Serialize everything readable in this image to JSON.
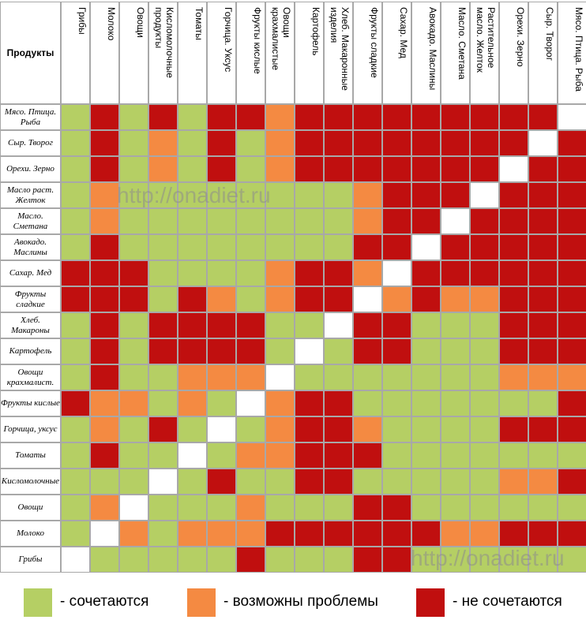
{
  "table": {
    "corner": "Продукты",
    "columns": [
      "Грибы",
      "Молоко",
      "Овощи",
      "Кисломолочные продукты",
      "Томаты",
      "Горчица. Уксус",
      "Фрукты кислые",
      "Овощи крахмалистые",
      "Картофель",
      "Хлеб. Макаронные изделия",
      "Фрукты сладкие",
      "Сахар. Мед",
      "Авокадо. Маслины",
      "Масло. Сметана",
      "Растительное масло. Желток",
      "Орехи. Зерно",
      "Сыр. Творог",
      "Мясо. Птица. Рыба"
    ],
    "rows": [
      {
        "label": "Мясо. Птица. Рыба",
        "cells": [
          "g",
          "r",
          "g",
          "r",
          "g",
          "r",
          "r",
          "o",
          "r",
          "r",
          "r",
          "r",
          "r",
          "r",
          "r",
          "r",
          "r",
          "w"
        ]
      },
      {
        "label": "Сыр. Творог",
        "cells": [
          "g",
          "r",
          "g",
          "o",
          "g",
          "r",
          "g",
          "o",
          "r",
          "r",
          "r",
          "r",
          "r",
          "r",
          "r",
          "r",
          "w",
          "r"
        ]
      },
      {
        "label": "Орехи. Зерно",
        "cells": [
          "g",
          "r",
          "g",
          "o",
          "g",
          "r",
          "g",
          "o",
          "r",
          "r",
          "r",
          "r",
          "r",
          "r",
          "r",
          "w",
          "r",
          "r"
        ]
      },
      {
        "label": "Масло раст. Желток",
        "cells": [
          "g",
          "o",
          "g",
          "g",
          "g",
          "g",
          "g",
          "g",
          "g",
          "g",
          "o",
          "r",
          "r",
          "r",
          "w",
          "r",
          "r",
          "r"
        ]
      },
      {
        "label": "Масло. Сметана",
        "cells": [
          "g",
          "o",
          "g",
          "g",
          "g",
          "g",
          "g",
          "g",
          "g",
          "g",
          "o",
          "r",
          "r",
          "w",
          "r",
          "r",
          "r",
          "r"
        ]
      },
      {
        "label": "Авокадо. Маслины",
        "cells": [
          "g",
          "r",
          "g",
          "g",
          "g",
          "g",
          "g",
          "g",
          "g",
          "g",
          "r",
          "r",
          "w",
          "r",
          "r",
          "r",
          "r",
          "r"
        ]
      },
      {
        "label": "Сахар. Мед",
        "cells": [
          "r",
          "r",
          "r",
          "g",
          "g",
          "g",
          "g",
          "o",
          "r",
          "r",
          "o",
          "w",
          "r",
          "r",
          "r",
          "r",
          "r",
          "r"
        ]
      },
      {
        "label": "Фрукты сладкие",
        "cells": [
          "r",
          "r",
          "r",
          "g",
          "r",
          "o",
          "g",
          "o",
          "r",
          "r",
          "w",
          "o",
          "r",
          "o",
          "o",
          "r",
          "r",
          "r"
        ]
      },
      {
        "label": "Хлеб. Макароны",
        "cells": [
          "g",
          "r",
          "g",
          "r",
          "r",
          "r",
          "r",
          "g",
          "g",
          "w",
          "r",
          "r",
          "g",
          "g",
          "g",
          "r",
          "r",
          "r"
        ]
      },
      {
        "label": "Картофель",
        "cells": [
          "g",
          "r",
          "g",
          "r",
          "r",
          "r",
          "r",
          "g",
          "w",
          "g",
          "r",
          "r",
          "g",
          "g",
          "g",
          "r",
          "r",
          "r"
        ]
      },
      {
        "label": "Овощи крахмалист.",
        "cells": [
          "g",
          "r",
          "g",
          "g",
          "o",
          "o",
          "o",
          "w",
          "g",
          "g",
          "g",
          "g",
          "g",
          "g",
          "g",
          "o",
          "o",
          "o"
        ]
      },
      {
        "label": "Фрукты кислые",
        "cells": [
          "r",
          "o",
          "o",
          "g",
          "o",
          "g",
          "w",
          "o",
          "r",
          "r",
          "g",
          "g",
          "g",
          "g",
          "g",
          "g",
          "g",
          "r"
        ]
      },
      {
        "label": "Горчица, уксус",
        "cells": [
          "g",
          "o",
          "g",
          "r",
          "g",
          "w",
          "g",
          "o",
          "r",
          "r",
          "o",
          "g",
          "g",
          "g",
          "g",
          "r",
          "r",
          "r"
        ]
      },
      {
        "label": "Томаты",
        "cells": [
          "g",
          "r",
          "g",
          "g",
          "w",
          "g",
          "o",
          "o",
          "r",
          "r",
          "r",
          "g",
          "g",
          "g",
          "g",
          "g",
          "g",
          "g"
        ]
      },
      {
        "label": "Кисломолочные",
        "cells": [
          "g",
          "g",
          "g",
          "w",
          "g",
          "r",
          "g",
          "g",
          "r",
          "r",
          "g",
          "g",
          "g",
          "g",
          "g",
          "o",
          "o",
          "r"
        ]
      },
      {
        "label": "Овощи",
        "cells": [
          "g",
          "o",
          "w",
          "g",
          "g",
          "g",
          "o",
          "g",
          "g",
          "g",
          "r",
          "r",
          "g",
          "g",
          "g",
          "g",
          "g",
          "g"
        ]
      },
      {
        "label": "Молоко",
        "cells": [
          "g",
          "w",
          "o",
          "g",
          "o",
          "o",
          "o",
          "r",
          "r",
          "r",
          "r",
          "r",
          "r",
          "o",
          "o",
          "r",
          "r",
          "r"
        ]
      },
      {
        "label": "Грибы",
        "cells": [
          "w",
          "g",
          "g",
          "g",
          "g",
          "g",
          "r",
          "g",
          "g",
          "g",
          "r",
          "r",
          "g",
          "g",
          "g",
          "g",
          "g",
          "g"
        ]
      }
    ]
  },
  "colors": {
    "g": "#b5cf64",
    "o": "#f48a42",
    "r": "#c00f0f",
    "w": "#ffffff"
  },
  "legend": [
    {
      "code": "g",
      "label": "- сочетаются"
    },
    {
      "code": "o",
      "label": "- возможны проблемы"
    },
    {
      "code": "r",
      "label": "- не сочетаются"
    }
  ],
  "watermarks": [
    "http://onadiet.ru",
    "http://onadiet.ru"
  ]
}
